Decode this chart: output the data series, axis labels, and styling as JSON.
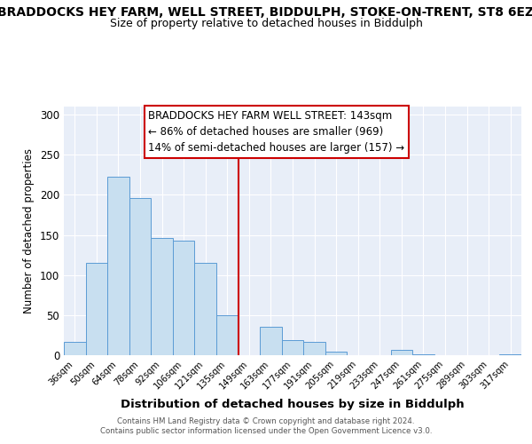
{
  "title": "BRADDOCKS HEY FARM, WELL STREET, BIDDULPH, STOKE-ON-TRENT, ST8 6EZ",
  "subtitle": "Size of property relative to detached houses in Biddulph",
  "xlabel": "Distribution of detached houses by size in Biddulph",
  "ylabel": "Number of detached properties",
  "footer_line1": "Contains HM Land Registry data © Crown copyright and database right 2024.",
  "footer_line2": "Contains public sector information licensed under the Open Government Licence v3.0.",
  "categories": [
    "36sqm",
    "50sqm",
    "64sqm",
    "78sqm",
    "92sqm",
    "106sqm",
    "121sqm",
    "135sqm",
    "149sqm",
    "163sqm",
    "177sqm",
    "191sqm",
    "205sqm",
    "219sqm",
    "233sqm",
    "247sqm",
    "261sqm",
    "275sqm",
    "289sqm",
    "303sqm",
    "317sqm"
  ],
  "values": [
    17,
    115,
    222,
    196,
    146,
    143,
    115,
    50,
    0,
    35,
    19,
    17,
    4,
    0,
    0,
    7,
    1,
    0,
    0,
    0,
    1
  ],
  "bar_color": "#c8dff0",
  "bar_edge_color": "#5b9bd5",
  "vline_x": 7.5,
  "vline_color": "#cc0000",
  "annotation_title": "BRADDOCKS HEY FARM WELL STREET: 143sqm",
  "annotation_line1": "← 86% of detached houses are smaller (969)",
  "annotation_line2": "14% of semi-detached houses are larger (157) →",
  "ylim": [
    0,
    310
  ],
  "yticks": [
    0,
    50,
    100,
    150,
    200,
    250,
    300
  ],
  "bg_color": "#ffffff",
  "plot_bg_color": "#e8eef8",
  "grid_color": "#ffffff",
  "annotation_font_size": 8.5,
  "title_fontsize": 10,
  "subtitle_fontsize": 9
}
